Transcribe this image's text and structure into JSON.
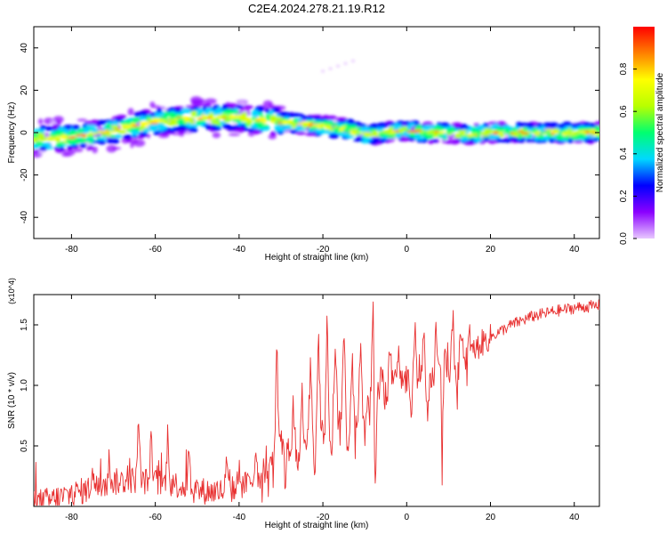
{
  "title": "C2E4.2024.278.21.19.R12",
  "chart_data": [
    {
      "type": "heatmap",
      "xlabel": "Height of straight line (km)",
      "ylabel": "Frequency (Hz)",
      "xlim": [
        -89,
        46
      ],
      "ylim": [
        -50,
        50
      ],
      "xticks": [
        -80,
        -60,
        -40,
        -20,
        0,
        20,
        40
      ],
      "yticks": [
        -40,
        -20,
        0,
        20,
        40
      ],
      "colorbar": {
        "label": "Normalized spectral amplitude",
        "range": [
          0,
          1
        ],
        "ticks": [
          0.0,
          0.2,
          0.4,
          0.6,
          0.8
        ],
        "tick_labels": [
          "0.0",
          "0.2",
          "0.4",
          "0.6",
          "0.8"
        ],
        "colors": [
          "#e8c8ff",
          "#8a00ff",
          "#0000ff",
          "#00d8ff",
          "#00ff70",
          "#b8ff00",
          "#ffff00",
          "#ff8000",
          "#ff0000"
        ]
      },
      "ridge": {
        "x": [
          -89,
          -85,
          -80,
          -75,
          -70,
          -65,
          -60,
          -55,
          -50,
          -45,
          -40,
          -35,
          -30,
          -25,
          -20,
          -15,
          -10,
          -5,
          0,
          5,
          10,
          15,
          20,
          25,
          30,
          35,
          40,
          46
        ],
        "y": [
          -3,
          -3,
          -2,
          -1,
          1,
          3,
          5,
          6,
          7,
          7,
          7,
          6,
          5,
          4,
          3,
          2,
          -1,
          0,
          1,
          0,
          0,
          -1,
          0,
          0,
          0,
          0,
          0,
          0
        ]
      }
    },
    {
      "type": "line",
      "xlabel": "Height of straight line (km)",
      "ylabel": "SNR (10 * v/v)",
      "y_multiplier": "(x10^4)",
      "xlim": [
        -89,
        46
      ],
      "ylim": [
        0,
        1.75
      ],
      "xticks": [
        -80,
        -60,
        -40,
        -20,
        0,
        20,
        40
      ],
      "yticks": [
        0.5,
        1.0,
        1.5
      ],
      "ytick_labels": [
        "0.5",
        "1.0",
        "1.5"
      ],
      "color": "#e83030",
      "envelope": {
        "x": [
          -89,
          -85,
          -80,
          -75,
          -70,
          -65,
          -60,
          -55,
          -50,
          -45,
          -40,
          -35,
          -32,
          -30,
          -28,
          -25,
          -22,
          -20,
          -18,
          -15,
          -12,
          -10,
          -8,
          -6,
          -4,
          -2,
          0,
          3,
          6,
          9,
          12,
          15,
          18,
          21,
          25,
          30,
          35,
          40,
          46
        ],
        "y": [
          0.03,
          0.05,
          0.1,
          0.15,
          0.2,
          0.22,
          0.2,
          0.18,
          0.13,
          0.12,
          0.15,
          0.25,
          0.38,
          0.55,
          0.45,
          0.5,
          0.65,
          0.6,
          0.72,
          0.75,
          0.7,
          0.85,
          0.9,
          0.95,
          1.0,
          1.05,
          1.05,
          1.0,
          1.05,
          1.1,
          1.15,
          1.25,
          1.35,
          1.42,
          1.5,
          1.57,
          1.61,
          1.64,
          1.66
        ]
      },
      "spikes": {
        "x": [
          -75,
          -71,
          -64,
          -61,
          -57,
          -52,
          -43,
          -40,
          -36,
          -33,
          -31,
          -27,
          -25,
          -23,
          -21,
          -19,
          -17,
          -15,
          -13,
          -11,
          -8,
          -6,
          -4,
          -2,
          2,
          4,
          7,
          9,
          11,
          13,
          15
        ],
        "y": [
          0.35,
          0.4,
          0.72,
          0.55,
          0.65,
          0.52,
          0.35,
          0.38,
          0.5,
          0.75,
          1.37,
          0.8,
          1.0,
          1.25,
          1.42,
          1.55,
          1.38,
          1.5,
          1.25,
          1.35,
          1.75,
          1.2,
          1.4,
          1.3,
          1.55,
          1.48,
          1.5,
          1.45,
          1.6,
          1.52,
          1.45
        ]
      },
      "dips": {
        "x": [
          -33,
          -29,
          -26,
          -22,
          -18,
          -14,
          -10,
          -7.5,
          -5,
          1,
          5,
          8.5,
          12
        ],
        "y": [
          0.1,
          0.15,
          0.22,
          0.25,
          0.35,
          0.4,
          0.5,
          0.08,
          0.6,
          0.75,
          0.65,
          0.55,
          0.85
        ]
      },
      "noise_amplitude": 0.07
    }
  ]
}
